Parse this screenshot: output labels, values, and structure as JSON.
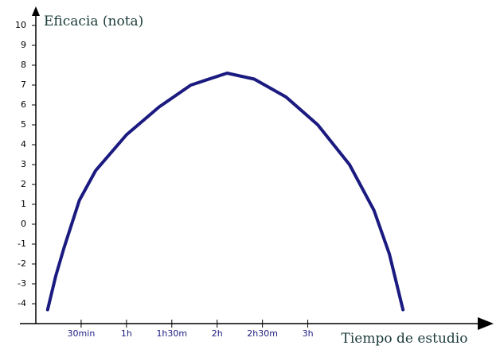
{
  "chart_data": {
    "type": "line",
    "y_label": "Eficacia (nota)",
    "x_label": "Tiempo de estudio",
    "x": [
      0.13,
      0.22,
      0.31,
      0.48,
      0.66,
      1.0,
      1.36,
      1.71,
      2.11,
      2.41,
      2.76,
      3.11,
      3.46,
      3.73,
      3.9,
      4.05
    ],
    "series": [
      {
        "color": "#1a1a80",
        "values": [
          -4.3,
          -2.6,
          -1.2,
          1.2,
          2.7,
          4.5,
          5.9,
          7.0,
          7.6,
          7.3,
          6.4,
          5.0,
          3.0,
          0.7,
          -1.5,
          -4.3
        ]
      }
    ],
    "xlim": [
      0,
      5.05
    ],
    "ylim": [
      -5,
      10.9
    ],
    "xticks": [
      {
        "value": 0.5,
        "label": "30min"
      },
      {
        "value": 1,
        "label": "1h"
      },
      {
        "value": 1.5,
        "label": "1h30m"
      },
      {
        "value": 2,
        "label": "2h"
      },
      {
        "value": 2.5,
        "label": "2h30m"
      },
      {
        "value": 3,
        "label": "3h"
      }
    ],
    "yticks": [
      -4,
      -3,
      -2,
      -1,
      0,
      1,
      2,
      3,
      4,
      5,
      6,
      7,
      8,
      9,
      10
    ]
  }
}
